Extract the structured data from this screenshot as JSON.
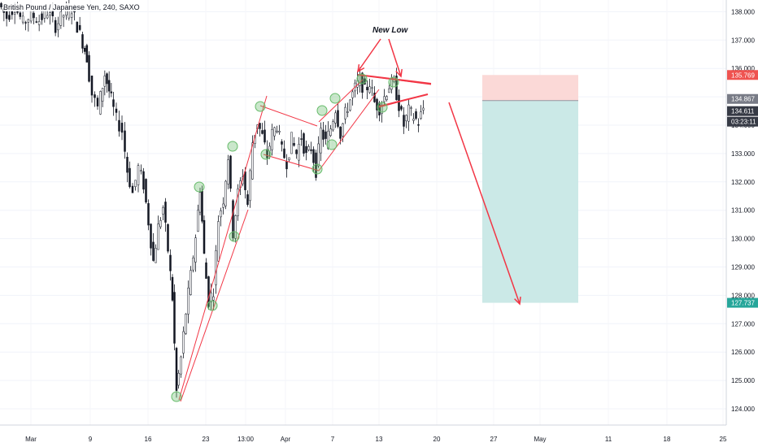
{
  "chart_data": {
    "type": "candlestick",
    "title": "British Pound / Japanese Yen, 240, SAXO",
    "y_ticks": [
      124,
      125,
      126,
      127,
      128,
      129,
      130,
      131,
      132,
      133,
      134,
      135,
      136,
      137,
      138
    ],
    "y_tick_labels": [
      "124.000",
      "125.000",
      "126.000",
      "127.000",
      "128.000",
      "129.000",
      "130.000",
      "131.000",
      "132.000",
      "133.000",
      "134.000",
      "135.000",
      "136.000",
      "137.000",
      "138.000"
    ],
    "x_tick_labels": [
      "Mar",
      "9",
      "16",
      "23",
      "13:00",
      "Apr",
      "7",
      "13",
      "20",
      "27",
      "May",
      "11",
      "18",
      "25"
    ],
    "annotations": {
      "new_low_label": "New Low"
    },
    "price_tags": [
      {
        "value": "135.769",
        "color": "#ef5350"
      },
      {
        "value": "134.867",
        "color": "#787b86"
      },
      {
        "value": "134.611",
        "color": "#363a45"
      },
      {
        "value": "03:23:11",
        "color": "#363a45"
      },
      {
        "value": "127.737",
        "color": "#26a69a"
      }
    ],
    "trade_box": {
      "entry": 134.867,
      "stop": 135.769,
      "target": 127.737,
      "stop_zone_color": "#fbd9d7",
      "target_zone_color": "#cbe9e7"
    },
    "price_series": [
      {
        "x": 0,
        "y": 138.3
      },
      {
        "x": 10,
        "y": 137.8
      },
      {
        "x": 20,
        "y": 138.2
      },
      {
        "x": 30,
        "y": 137.6
      },
      {
        "x": 40,
        "y": 137.9
      },
      {
        "x": 50,
        "y": 137.7
      },
      {
        "x": 60,
        "y": 138.0
      },
      {
        "x": 70,
        "y": 137.5
      },
      {
        "x": 80,
        "y": 137.9
      },
      {
        "x": 90,
        "y": 138.1
      },
      {
        "x": 100,
        "y": 137.2
      },
      {
        "x": 108,
        "y": 136.4
      },
      {
        "x": 115,
        "y": 135.1
      },
      {
        "x": 122,
        "y": 134.6
      },
      {
        "x": 130,
        "y": 135.8
      },
      {
        "x": 138,
        "y": 134.9
      },
      {
        "x": 145,
        "y": 134.2
      },
      {
        "x": 152,
        "y": 133.8
      },
      {
        "x": 158,
        "y": 132.4
      },
      {
        "x": 165,
        "y": 131.6
      },
      {
        "x": 172,
        "y": 132.5
      },
      {
        "x": 178,
        "y": 131.9
      },
      {
        "x": 184,
        "y": 130.6
      },
      {
        "x": 190,
        "y": 129.2
      },
      {
        "x": 196,
        "y": 130.4
      },
      {
        "x": 202,
        "y": 131.1
      },
      {
        "x": 208,
        "y": 129.6
      },
      {
        "x": 213,
        "y": 127.9
      },
      {
        "x": 218,
        "y": 124.6
      },
      {
        "x": 224,
        "y": 125.8
      },
      {
        "x": 230,
        "y": 127.4
      },
      {
        "x": 236,
        "y": 128.7
      },
      {
        "x": 242,
        "y": 130.1
      },
      {
        "x": 247,
        "y": 131.8
      },
      {
        "x": 252,
        "y": 129.4
      },
      {
        "x": 258,
        "y": 127.8
      },
      {
        "x": 264,
        "y": 128.2
      },
      {
        "x": 270,
        "y": 130.7
      },
      {
        "x": 276,
        "y": 131.4
      },
      {
        "x": 282,
        "y": 132.9
      },
      {
        "x": 288,
        "y": 130.2
      },
      {
        "x": 294,
        "y": 131.6
      },
      {
        "x": 300,
        "y": 132.3
      },
      {
        "x": 306,
        "y": 131.2
      },
      {
        "x": 312,
        "y": 133.4
      },
      {
        "x": 318,
        "y": 134.1
      },
      {
        "x": 324,
        "y": 133.6
      },
      {
        "x": 330,
        "y": 132.9
      },
      {
        "x": 336,
        "y": 133.7
      },
      {
        "x": 342,
        "y": 134.0
      },
      {
        "x": 348,
        "y": 133.1
      },
      {
        "x": 354,
        "y": 132.7
      },
      {
        "x": 360,
        "y": 133.5
      },
      {
        "x": 366,
        "y": 133.0
      },
      {
        "x": 372,
        "y": 133.6
      },
      {
        "x": 378,
        "y": 132.9
      },
      {
        "x": 384,
        "y": 133.2
      },
      {
        "x": 390,
        "y": 132.4
      },
      {
        "x": 396,
        "y": 133.8
      },
      {
        "x": 402,
        "y": 133.4
      },
      {
        "x": 408,
        "y": 133.9
      },
      {
        "x": 414,
        "y": 134.6
      },
      {
        "x": 420,
        "y": 133.7
      },
      {
        "x": 426,
        "y": 134.4
      },
      {
        "x": 432,
        "y": 134.9
      },
      {
        "x": 438,
        "y": 135.3
      },
      {
        "x": 444,
        "y": 135.6
      },
      {
        "x": 450,
        "y": 135.2
      },
      {
        "x": 456,
        "y": 135.5
      },
      {
        "x": 462,
        "y": 134.8
      },
      {
        "x": 468,
        "y": 134.6
      },
      {
        "x": 474,
        "y": 135.0
      },
      {
        "x": 480,
        "y": 135.4
      },
      {
        "x": 486,
        "y": 135.5
      },
      {
        "x": 492,
        "y": 134.7
      },
      {
        "x": 498,
        "y": 134.0
      },
      {
        "x": 504,
        "y": 134.5
      },
      {
        "x": 510,
        "y": 134.3
      },
      {
        "x": 516,
        "y": 134.1
      },
      {
        "x": 522,
        "y": 134.6
      }
    ]
  }
}
